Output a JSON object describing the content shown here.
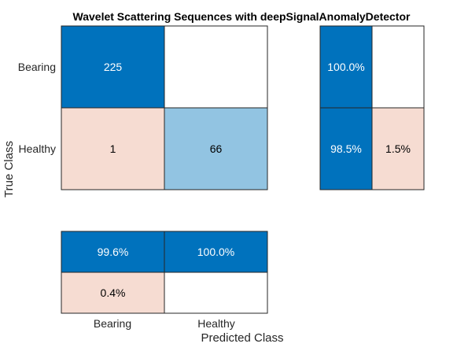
{
  "chart_data": {
    "type": "heatmap",
    "title": "Wavelet Scattering Sequences with deepSignalAnomalyDetector",
    "xlabel": "Predicted Class",
    "ylabel": "True Class",
    "classes": [
      "Bearing",
      "Healthy"
    ],
    "confusion_matrix": {
      "rows": [
        "Bearing",
        "Healthy"
      ],
      "cols": [
        "Bearing",
        "Healthy"
      ],
      "values": [
        [
          225,
          null
        ],
        [
          1,
          66
        ]
      ]
    },
    "row_summary": {
      "values": [
        [
          "100.0%",
          null
        ],
        [
          "98.5%",
          "1.5%"
        ]
      ]
    },
    "column_summary": {
      "values": [
        [
          "99.6%",
          "100.0%"
        ],
        [
          "0.4%",
          null
        ]
      ]
    },
    "colors": {
      "strong_correct": "#0072bd",
      "light_correct": "#92c4e2",
      "incorrect": "#f6dcd2",
      "empty": "#ffffff",
      "border": "#262626"
    }
  }
}
